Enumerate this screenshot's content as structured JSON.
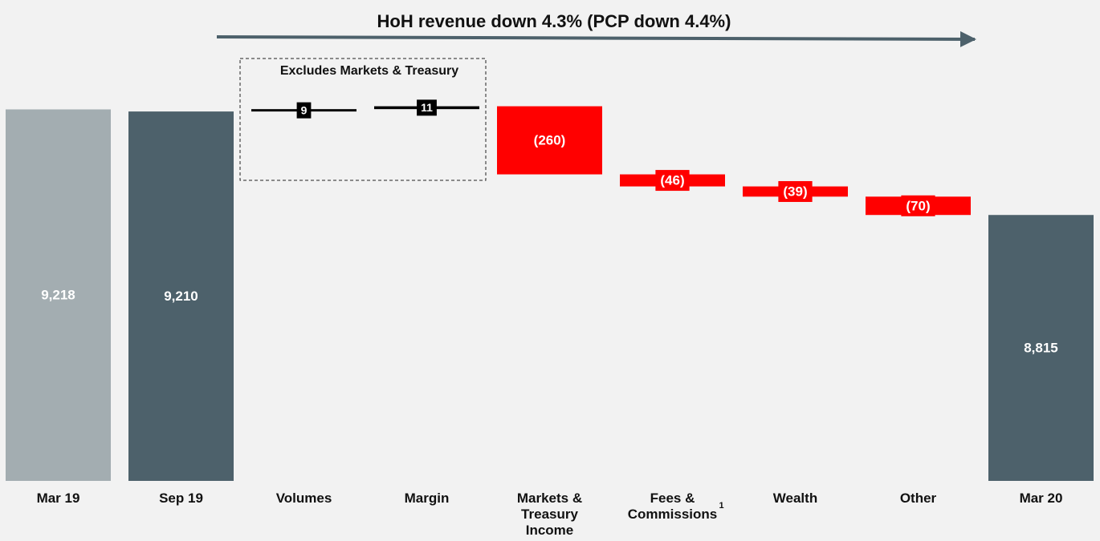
{
  "chart_data": {
    "type": "waterfall",
    "title": "HoH revenue down 4.3% (PCP down 4.4%)",
    "annotation": "Excludes Markets & Treasury",
    "categories": [
      "Mar 19",
      "Sep 19",
      "Volumes",
      "Margin",
      "Markets & Treasury Income",
      "Fees & Commissions",
      "Wealth",
      "Other",
      "Mar 20"
    ],
    "category_footnotes": [
      null,
      null,
      null,
      null,
      null,
      "1",
      null,
      null,
      null
    ],
    "values": [
      9218,
      9210,
      9,
      11,
      -260,
      -46,
      -39,
      -70,
      8815
    ],
    "value_labels": [
      "9,218",
      "9,210",
      "9",
      "11",
      "(260)",
      "(46)",
      "(39)",
      "(70)",
      "8,815"
    ],
    "is_total": [
      true,
      true,
      false,
      false,
      false,
      false,
      false,
      false,
      true
    ],
    "colors": [
      "#a3adb1",
      "#4d616b",
      "#000000",
      "#000000",
      "#ff0000",
      "#ff0000",
      "#ff0000",
      "#ff0000",
      "#4d616b"
    ],
    "ylim": [
      7800,
      9400
    ]
  }
}
